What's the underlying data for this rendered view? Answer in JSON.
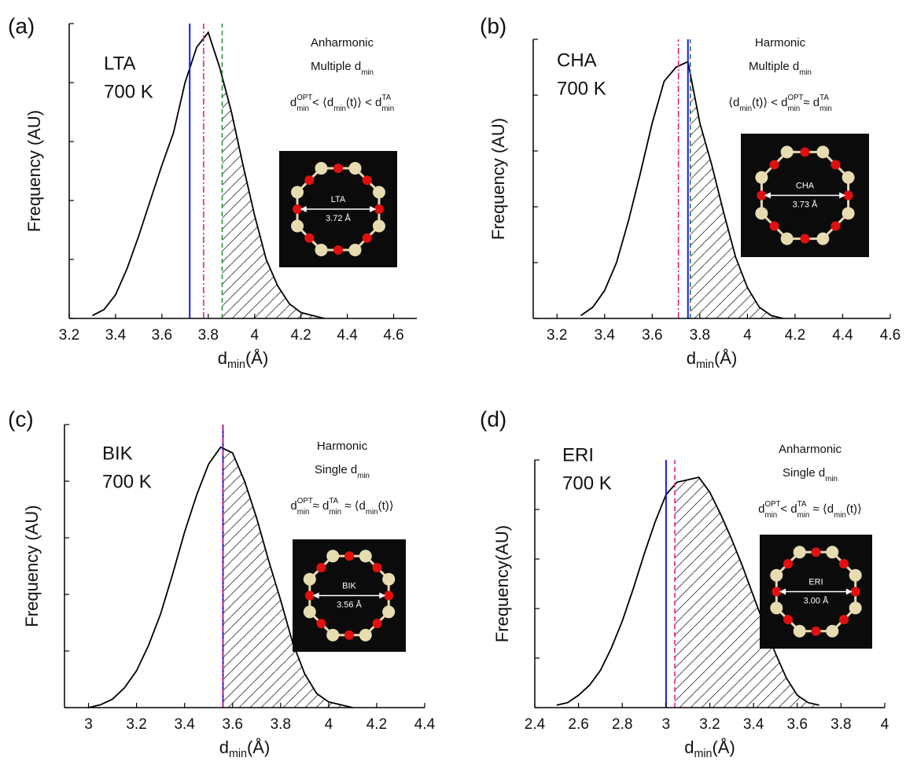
{
  "chart_data": [
    {
      "type": "line",
      "panel": "(a)",
      "sample": [
        "LTA",
        "700 K"
      ],
      "notes": [
        [
          {
            "text": "Anharmonic"
          }
        ],
        [
          {
            "text": "Multiple d",
            "sub": "min"
          }
        ],
        [
          {
            "text": "d",
            "sup": "OPT",
            "sub": "min"
          },
          {
            "text": " <  ⟨d",
            "sub": "min"
          },
          {
            "text": "(t)⟩ < d",
            "sup": "TA",
            "sub": "min"
          }
        ]
      ],
      "xlabel": [
        {
          "text": "d",
          "sub": "min"
        },
        {
          "text": "(Å)"
        }
      ],
      "ylabel": "Frequency (AU)",
      "x": [
        3.3,
        3.35,
        3.4,
        3.45,
        3.5,
        3.55,
        3.6,
        3.65,
        3.7,
        3.75,
        3.8,
        3.85,
        3.9,
        3.95,
        4.0,
        4.05,
        4.1,
        4.15,
        4.2,
        4.25,
        4.3
      ],
      "values": [
        0.01,
        0.03,
        0.08,
        0.17,
        0.28,
        0.4,
        0.52,
        0.63,
        0.8,
        0.92,
        0.97,
        0.85,
        0.7,
        0.52,
        0.35,
        0.2,
        0.11,
        0.05,
        0.02,
        0.01,
        0
      ],
      "color": "#000000",
      "xlim": [
        3.2,
        4.7
      ],
      "xticks": [
        3.2,
        3.4,
        3.6,
        3.8,
        4.0,
        4.2,
        4.4,
        4.6
      ],
      "ylim": [
        0,
        1
      ],
      "yticks": [
        0,
        0.2,
        0.4,
        0.6,
        0.8,
        1.0
      ],
      "vlines": [
        {
          "value": 3.72,
          "color": "#1a1ad6",
          "style": "solid"
        },
        {
          "value": 3.78,
          "color": "#e0208a",
          "style": "dashdot"
        },
        {
          "value": 3.86,
          "color": "#2a9a2a",
          "style": "dashed"
        }
      ],
      "shade_from": 3.86,
      "inset": {
        "label": "LTA",
        "dimension": "3.72 Å"
      }
    },
    {
      "type": "line",
      "panel": "(b)",
      "sample": [
        "CHA",
        "700 K"
      ],
      "notes": [
        [
          {
            "text": "Harmonic"
          }
        ],
        [
          {
            "text": "Multiple d",
            "sub": "min"
          }
        ],
        [
          {
            "text": "⟨d",
            "sub": "min"
          },
          {
            "text": "(t)⟩ < d",
            "sup": "OPT",
            "sub": "min"
          },
          {
            "text": " ≈   d",
            "sup": "TA",
            "sub": "min"
          }
        ]
      ],
      "xlabel": [
        {
          "text": "d",
          "sub": "min"
        },
        {
          "text": "(Å)"
        }
      ],
      "ylabel": "Frequency (AU)",
      "x": [
        3.3,
        3.35,
        3.4,
        3.45,
        3.5,
        3.55,
        3.6,
        3.65,
        3.7,
        3.75,
        3.8,
        3.85,
        3.9,
        3.95,
        4.0,
        4.05,
        4.1,
        4.15
      ],
      "values": [
        0.01,
        0.04,
        0.1,
        0.2,
        0.35,
        0.52,
        0.7,
        0.85,
        0.9,
        0.92,
        0.7,
        0.55,
        0.38,
        0.22,
        0.11,
        0.04,
        0.01,
        0
      ],
      "color": "#000000",
      "xlim": [
        3.1,
        4.6
      ],
      "xticks": [
        3.2,
        3.4,
        3.6,
        3.8,
        4.0,
        4.2,
        4.4,
        4.6
      ],
      "ylim": [
        0,
        1
      ],
      "yticks": [
        0,
        0.2,
        0.4,
        0.6,
        0.8,
        1.0
      ],
      "vlines": [
        {
          "value": 3.71,
          "color": "#e0208a",
          "style": "dashdot"
        },
        {
          "value": 3.75,
          "color": "#1a1ad6",
          "style": "solid"
        },
        {
          "value": 3.76,
          "color": "#2a7a5a",
          "style": "dashed"
        }
      ],
      "shade_from": 3.76,
      "inset": {
        "label": "CHA",
        "dimension": "3.73 Å"
      }
    },
    {
      "type": "line",
      "panel": "(c)",
      "sample": [
        "BIK",
        "700 K"
      ],
      "notes": [
        [
          {
            "text": "Harmonic"
          }
        ],
        [
          {
            "text": "Single d",
            "sub": "min"
          }
        ],
        [
          {
            "text": "d",
            "sup": "OPT",
            "sub": "min"
          },
          {
            "text": " ≈ d",
            "sup": "TA",
            "sub": "min"
          },
          {
            "text": " ≈ ⟨d",
            "sub": "min"
          },
          {
            "text": "(t)⟩"
          }
        ]
      ],
      "xlabel": [
        {
          "text": "d",
          "sub": "min"
        },
        {
          "text": "(Å)"
        }
      ],
      "ylabel": "Frequency (AU)",
      "x": [
        3.0,
        3.05,
        3.1,
        3.15,
        3.2,
        3.25,
        3.3,
        3.35,
        3.4,
        3.45,
        3.5,
        3.55,
        3.6,
        3.65,
        3.7,
        3.75,
        3.8,
        3.85,
        3.9,
        3.95,
        4.0,
        4.05,
        4.1
      ],
      "values": [
        0,
        0.01,
        0.03,
        0.07,
        0.13,
        0.22,
        0.33,
        0.47,
        0.62,
        0.75,
        0.86,
        0.92,
        0.9,
        0.8,
        0.67,
        0.52,
        0.38,
        0.23,
        0.12,
        0.05,
        0.02,
        0.01,
        0
      ],
      "color": "#000000",
      "xlim": [
        2.9,
        4.4
      ],
      "xticks": [
        3.0,
        3.2,
        3.4,
        3.6,
        3.8,
        4.0,
        4.2,
        4.4
      ],
      "ylim": [
        0,
        1
      ],
      "yticks": [
        0,
        0.2,
        0.4,
        0.6,
        0.8,
        1.0
      ],
      "vlines": [
        {
          "value": 3.56,
          "color": "#1a1ad6",
          "style": "solid"
        },
        {
          "value": 3.56,
          "color": "#e0208a",
          "style": "dashdot"
        }
      ],
      "shade_from": 3.56,
      "inset": {
        "label": "BIK",
        "dimension": "3.56 Å"
      }
    },
    {
      "type": "line",
      "panel": "(d)",
      "sample": [
        "ERI",
        "700 K"
      ],
      "notes": [
        [
          {
            "text": "Anharmonic"
          }
        ],
        [
          {
            "text": "Single d",
            "sub": "min"
          }
        ],
        [
          {
            "text": "d",
            "sup": "OPT",
            "sub": "min"
          },
          {
            "text": " <  d",
            "sup": "TA",
            "sub": "min"
          },
          {
            "text": " ≈ ⟨d",
            "sub": "min"
          },
          {
            "text": "(t)⟩"
          }
        ]
      ],
      "xlabel": [
        {
          "text": "d",
          "sub": "min"
        },
        {
          "text": "(Å)"
        }
      ],
      "ylabel": "Frequency(AU)",
      "x": [
        2.5,
        2.55,
        2.6,
        2.65,
        2.7,
        2.75,
        2.8,
        2.85,
        2.9,
        2.95,
        3.0,
        3.05,
        3.1,
        3.15,
        3.2,
        3.25,
        3.3,
        3.35,
        3.4,
        3.45,
        3.5,
        3.55,
        3.6,
        3.65,
        3.7
      ],
      "values": [
        0.01,
        0.02,
        0.05,
        0.09,
        0.15,
        0.24,
        0.35,
        0.48,
        0.62,
        0.75,
        0.86,
        0.91,
        0.92,
        0.93,
        0.87,
        0.78,
        0.68,
        0.57,
        0.45,
        0.33,
        0.22,
        0.12,
        0.05,
        0.02,
        0.01
      ],
      "color": "#000000",
      "xlim": [
        2.4,
        4.0
      ],
      "xticks": [
        2.4,
        2.6,
        2.8,
        3.0,
        3.2,
        3.4,
        3.6,
        3.8,
        4.0
      ],
      "ylim": [
        0,
        1
      ],
      "yticks": [
        0,
        0.2,
        0.4,
        0.6,
        0.8,
        1.0
      ],
      "vlines": [
        {
          "value": 3.0,
          "color": "#1a1ad6",
          "style": "solid"
        },
        {
          "value": 3.04,
          "color": "#e0208a",
          "style": "dashed"
        }
      ],
      "shade_from": 3.04,
      "inset": {
        "label": "ERI",
        "dimension": "3.00 Å"
      }
    }
  ]
}
